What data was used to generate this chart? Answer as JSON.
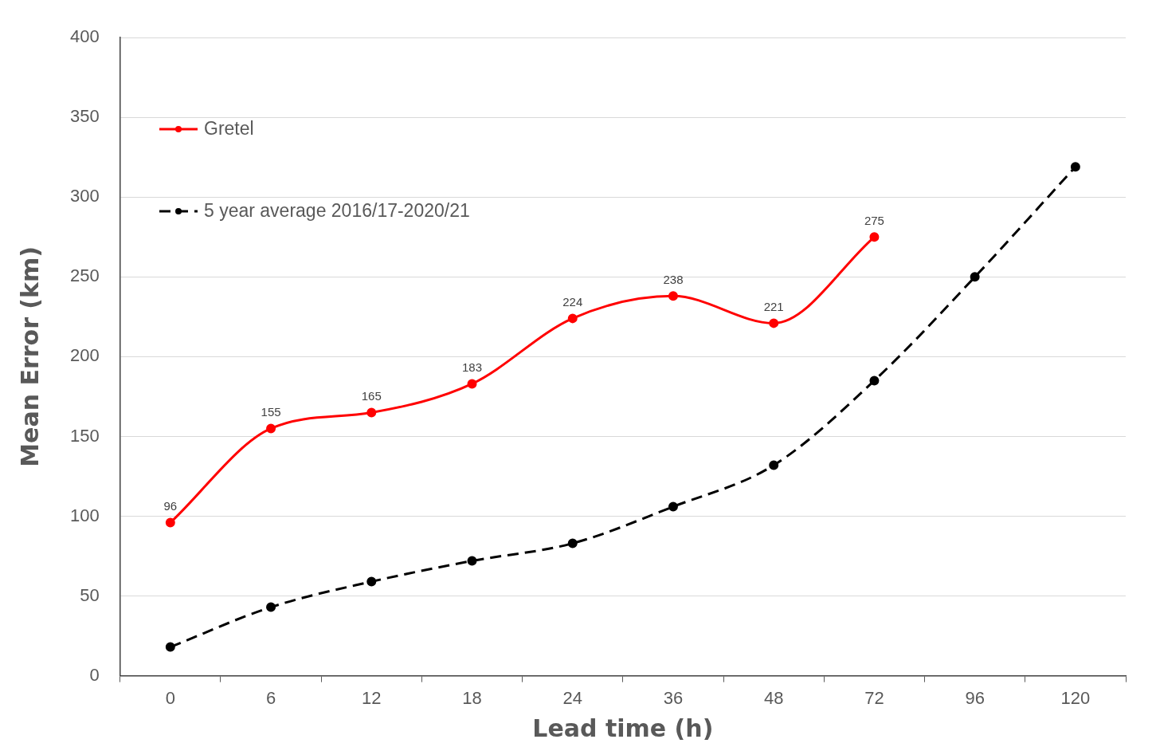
{
  "chart_data": {
    "type": "line",
    "xlabel": "Lead time (h)",
    "ylabel": "Mean Error (km)",
    "categories": [
      "0",
      "6",
      "12",
      "18",
      "24",
      "36",
      "48",
      "72",
      "96",
      "120"
    ],
    "series": [
      {
        "name": "Gretel",
        "color": "#ff0000",
        "line_style": "solid",
        "values": [
          96,
          155,
          165,
          183,
          224,
          238,
          221,
          275,
          null,
          null
        ],
        "value_labels": [
          "96",
          "155",
          "165",
          "183",
          "224",
          "238",
          "221",
          "275",
          null,
          null
        ]
      },
      {
        "name": "5 year average 2016/17-2020/21",
        "color": "#000000",
        "line_style": "dashed",
        "values": [
          18,
          43,
          59,
          72,
          83,
          106,
          132,
          185,
          250,
          319
        ]
      }
    ],
    "ylim": [
      0,
      400
    ],
    "yticks": [
      0,
      50,
      100,
      150,
      200,
      250,
      300,
      350,
      400
    ],
    "grid": "y",
    "legend": "top left",
    "marker": "circle"
  }
}
